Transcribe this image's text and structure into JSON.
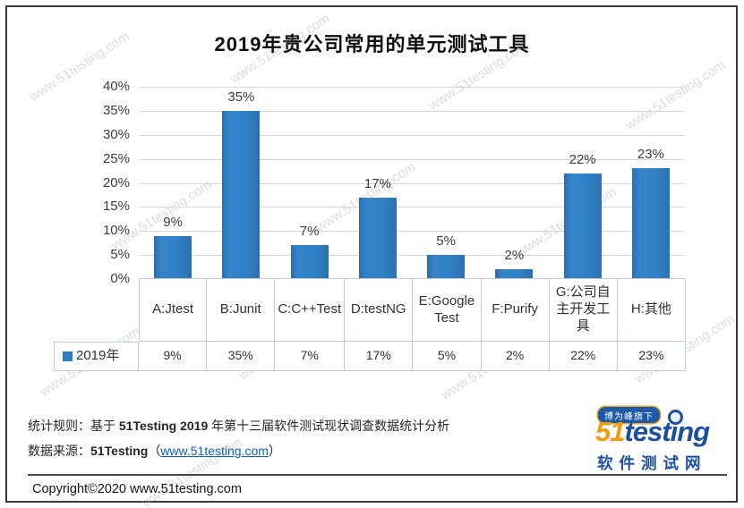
{
  "title": "2019年贵公司常用的单元测试工具",
  "watermark": "www.51testing.com",
  "chart_data": {
    "type": "bar",
    "title": "2019年贵公司常用的单元测试工具",
    "categories": [
      "A:Jtest",
      "B:Junit",
      "C:C++Test",
      "D:testNG",
      "E:Google Test",
      "F:Purify",
      "G:公司自主开发工具",
      "H:其他"
    ],
    "series": [
      {
        "name": "2019年",
        "values": [
          9,
          35,
          7,
          17,
          5,
          2,
          22,
          23
        ]
      }
    ],
    "value_labels": [
      "9%",
      "35%",
      "7%",
      "17%",
      "5%",
      "2%",
      "22%",
      "23%"
    ],
    "xlabel": "",
    "ylabel": "",
    "ylim": [
      0,
      40
    ],
    "ytick_step": 5,
    "ytick_suffix": "%",
    "grid": true,
    "legend_position": "table-row-left",
    "bar_color": "#2E7CC0"
  },
  "footer": {
    "line1_label": "统计规则：",
    "line1_parts": [
      "基于 ",
      "51Testing 2019",
      " 年第十三届软件测试现状调查数据统计分析"
    ],
    "line2_label": "数据来源：",
    "line2_source": "51Testing",
    "line2_paren_open": "（",
    "line2_link": "www.51testing.com",
    "line2_paren_close": "）",
    "copyright": "Copyright©2020 www.51testing.com"
  },
  "logo": {
    "badge": "博为峰旗下",
    "brand_51": "51",
    "brand_pre": "test",
    "brand_i": "ı",
    "brand_post": "ng",
    "subtitle": "软件测试网"
  }
}
